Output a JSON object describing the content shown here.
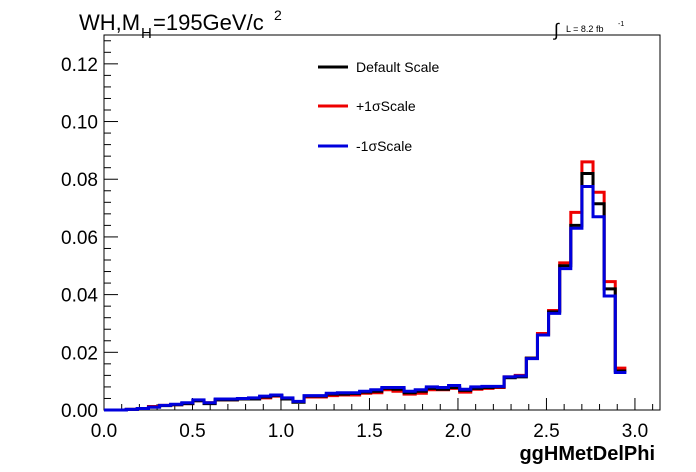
{
  "chart_data": {
    "type": "line",
    "step": true,
    "title_main": "WH,M",
    "title_sub": "H",
    "title_rest": "=195GeV/c",
    "title_sup": "2",
    "lumi_integral": "∫",
    "lumi_label": "L = 8.2 fb",
    "lumi_sup": "-1",
    "xlabel": "ggHMetDelPhi",
    "ylabel": "",
    "xlim": [
      0,
      3.1416
    ],
    "ylim": [
      0,
      0.13
    ],
    "grid": false,
    "legend_position": "top-center",
    "x_ticks": [
      "0.0",
      "0.5",
      "1.0",
      "1.5",
      "2.0",
      "2.5",
      "3.0"
    ],
    "x_tick_values": [
      0,
      0.5,
      1.0,
      1.5,
      2.0,
      2.5,
      3.0
    ],
    "y_ticks": [
      "0.00",
      "0.02",
      "0.04",
      "0.06",
      "0.08",
      "0.10",
      "0.12"
    ],
    "y_tick_values": [
      0,
      0.02,
      0.04,
      0.06,
      0.08,
      0.1,
      0.12
    ],
    "bin_width": 0.0628,
    "series": [
      {
        "name": "Default Scale",
        "color": "#000000",
        "values": [
          0.0,
          0.0,
          0.0002,
          0.0005,
          0.001,
          0.0015,
          0.0018,
          0.0022,
          0.0032,
          0.0022,
          0.0035,
          0.0035,
          0.0038,
          0.0038,
          0.0045,
          0.005,
          0.0038,
          0.0027,
          0.0048,
          0.0048,
          0.0055,
          0.0055,
          0.0057,
          0.0062,
          0.0065,
          0.0075,
          0.0072,
          0.006,
          0.0065,
          0.0075,
          0.0072,
          0.0078,
          0.0068,
          0.0075,
          0.0078,
          0.008,
          0.0112,
          0.0115,
          0.018,
          0.026,
          0.034,
          0.05,
          0.064,
          0.082,
          0.0715,
          0.042,
          0.0135
        ]
      },
      {
        "name": "+1σScale",
        "color": "#ee0000",
        "values": [
          0.0,
          0.0,
          0.0002,
          0.0005,
          0.0012,
          0.0016,
          0.0018,
          0.0022,
          0.0032,
          0.0025,
          0.0035,
          0.0035,
          0.0038,
          0.0038,
          0.0042,
          0.0048,
          0.0038,
          0.0028,
          0.0045,
          0.0045,
          0.005,
          0.0052,
          0.0052,
          0.0058,
          0.006,
          0.007,
          0.0065,
          0.0055,
          0.0058,
          0.007,
          0.007,
          0.0075,
          0.0062,
          0.0072,
          0.0075,
          0.0078,
          0.0115,
          0.012,
          0.018,
          0.0265,
          0.0345,
          0.051,
          0.0685,
          0.086,
          0.0755,
          0.0445,
          0.0145
        ]
      },
      {
        "name": "-1σScale",
        "color": "#0000dd",
        "values": [
          0.0,
          0.0,
          0.0002,
          0.0005,
          0.001,
          0.0016,
          0.002,
          0.0025,
          0.0035,
          0.0025,
          0.0038,
          0.0038,
          0.004,
          0.0042,
          0.0048,
          0.0052,
          0.0042,
          0.003,
          0.005,
          0.005,
          0.0058,
          0.006,
          0.006,
          0.0065,
          0.007,
          0.0078,
          0.0078,
          0.0065,
          0.007,
          0.008,
          0.0078,
          0.0085,
          0.0072,
          0.008,
          0.0082,
          0.0082,
          0.0115,
          0.0118,
          0.0178,
          0.026,
          0.0335,
          0.049,
          0.063,
          0.0775,
          0.067,
          0.0395,
          0.013
        ]
      }
    ]
  }
}
